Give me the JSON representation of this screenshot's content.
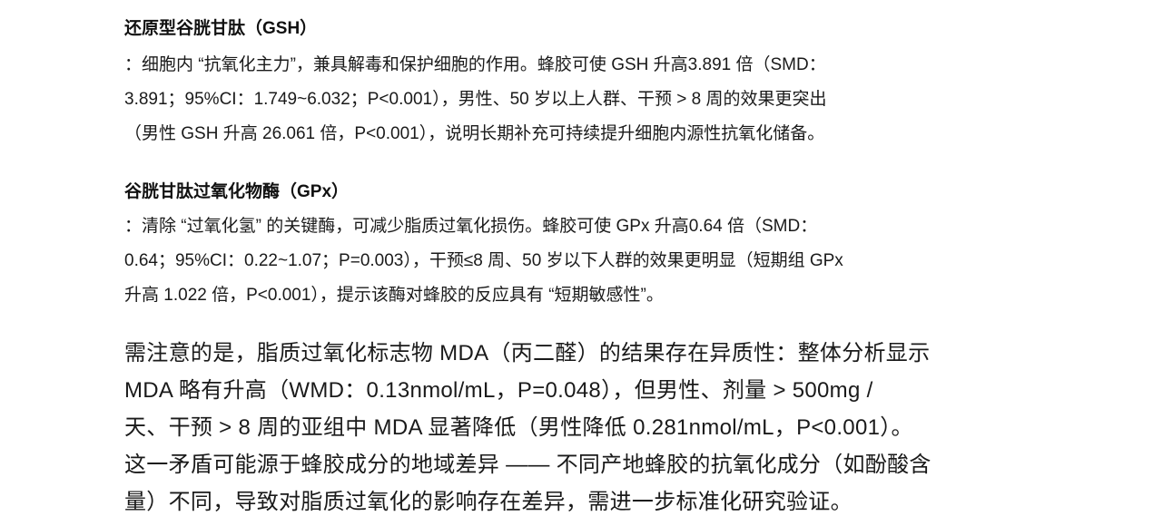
{
  "sections": [
    {
      "heading": "还原型谷胱甘肽（GSH）",
      "lines": [
        "：细胞内 “抗氧化主力”，兼具解毒和保护细胞的作用。蜂胶可使 GSH 升高3.891 倍（SMD：",
        "3.891；95%CI：1.749~6.032；P<0.001），男性、50 岁以上人群、干预 > 8 周的效果更突出",
        "（男性 GSH 升高 26.061 倍，P<0.001），说明长期补充可持续提升细胞内源性抗氧化储备。"
      ]
    },
    {
      "heading": "谷胱甘肽过氧化物酶（GPx）",
      "lines": [
        "：清除 “过氧化氢” 的关键酶，可减少脂质过氧化损伤。蜂胶可使 GPx 升高0.64 倍（SMD：",
        "0.64；95%CI：0.22~1.07；P=0.003），干预≤8 周、50 岁以下人群的效果更明显（短期组 GPx",
        "升高 1.022 倍，P<0.001），提示该酶对蜂胶的反应具有 “短期敏感性”。"
      ]
    }
  ],
  "note": {
    "lines": [
      "需注意的是，脂质过氧化标志物 MDA（丙二醛）的结果存在异质性：整体分析显示",
      "MDA 略有升高（WMD：0.13nmol/mL，P=0.048），但男性、剂量 > 500mg /",
      "天、干预 > 8 周的亚组中 MDA 显著降低（男性降低 0.281nmol/mL，P<0.001）。",
      "这一矛盾可能源于蜂胶成分的地域差异 —— 不同产地蜂胶的抗氧化成分（如酚酸含",
      "量）不同，导致对脂质过氧化的影响存在差异，需进一步标准化研究验证。"
    ]
  }
}
